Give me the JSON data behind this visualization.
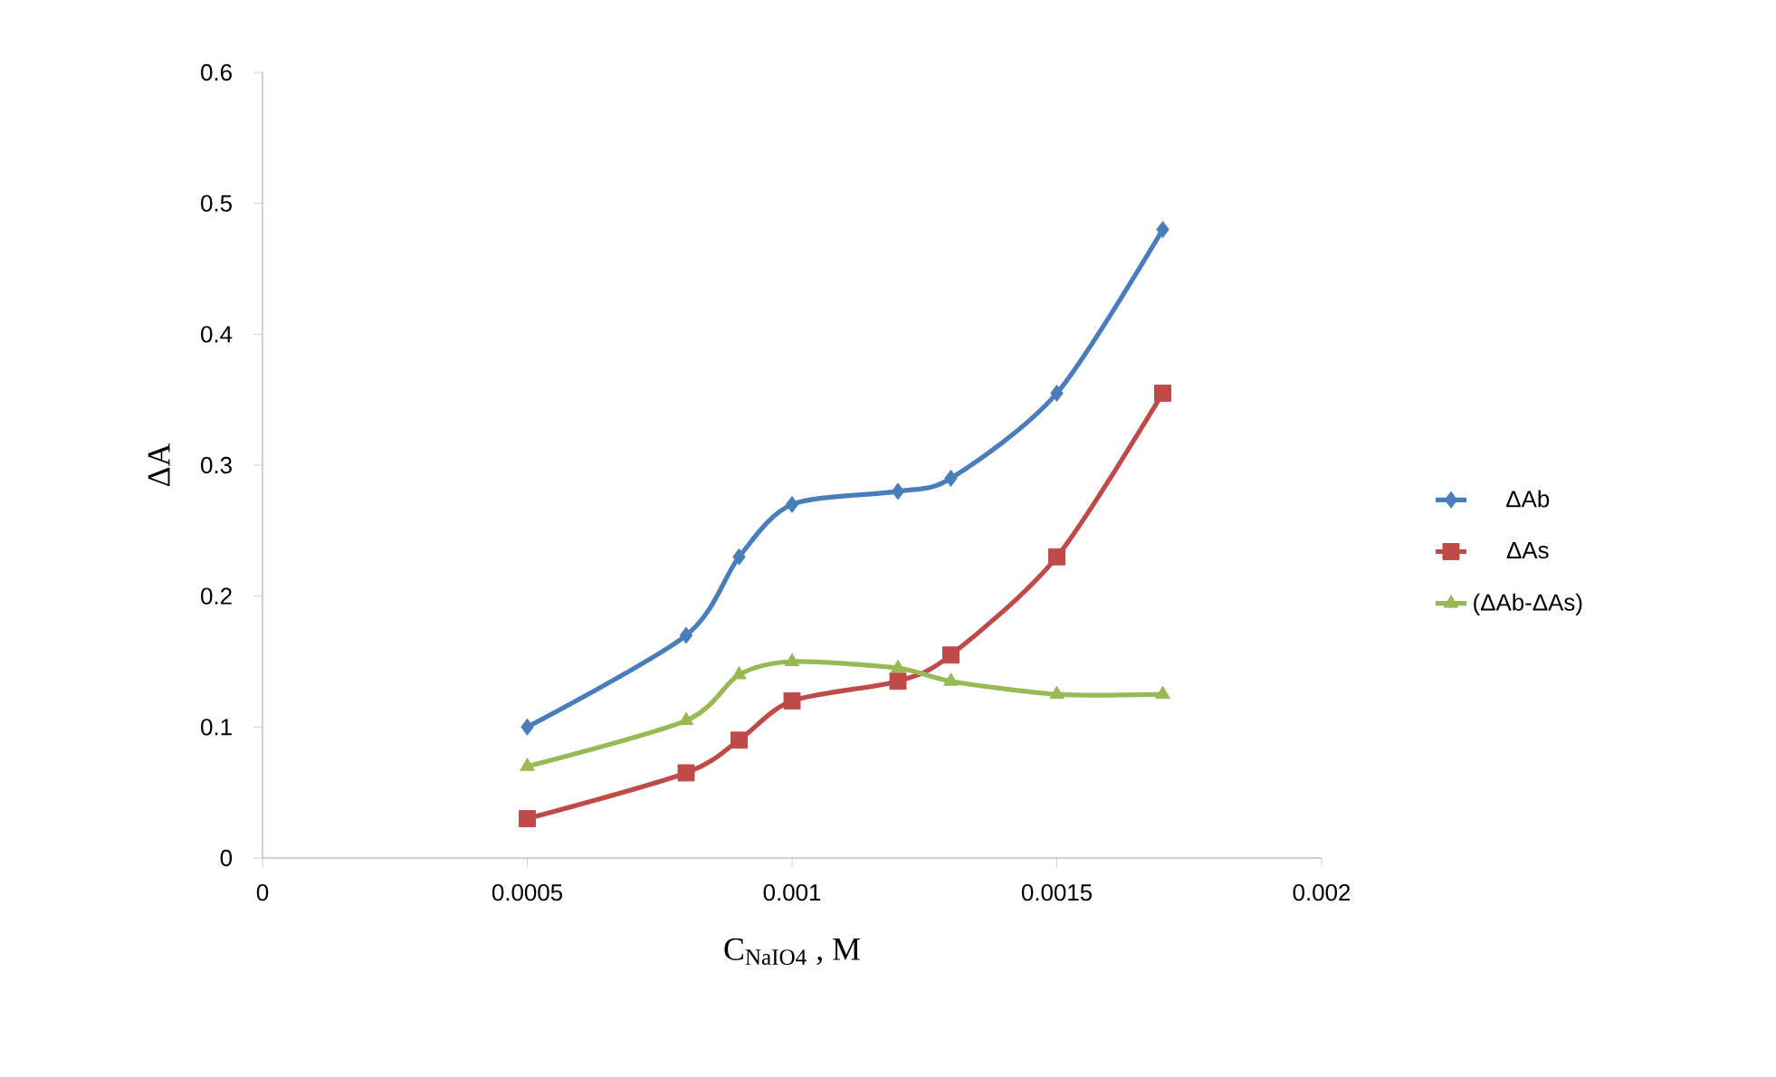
{
  "chart_data": {
    "type": "line",
    "xlabel": "C$_{NaIO4}$ , M",
    "ylabel": "ΔA",
    "x": [
      0.0005,
      0.0008,
      0.0009,
      0.001,
      0.0012,
      0.0013,
      0.0015,
      0.0017
    ],
    "series": [
      {
        "name": "ΔAb",
        "color": "#4a7ebb",
        "marker": "diamond",
        "values": [
          0.1,
          0.17,
          0.23,
          0.27,
          0.28,
          0.29,
          0.355,
          0.48
        ]
      },
      {
        "name": "ΔAs",
        "color": "#be4b48",
        "marker": "square",
        "values": [
          0.03,
          0.065,
          0.09,
          0.12,
          0.135,
          0.155,
          0.23,
          0.355
        ]
      },
      {
        "name": "(ΔAb-ΔAs)",
        "color": "#98b954",
        "marker": "triangle",
        "values": [
          0.07,
          0.105,
          0.14,
          0.15,
          0.145,
          0.135,
          0.125,
          0.125
        ]
      }
    ],
    "xlim": [
      0,
      0.002
    ],
    "xticks": [
      0,
      0.0005,
      0.001,
      0.0015,
      0.002
    ],
    "ylim": [
      0,
      0.6
    ],
    "yticks": [
      0,
      0.1,
      0.2,
      0.3,
      0.4,
      0.5,
      0.6
    ],
    "grid": false,
    "legend": "right",
    "line_style": "solid"
  }
}
